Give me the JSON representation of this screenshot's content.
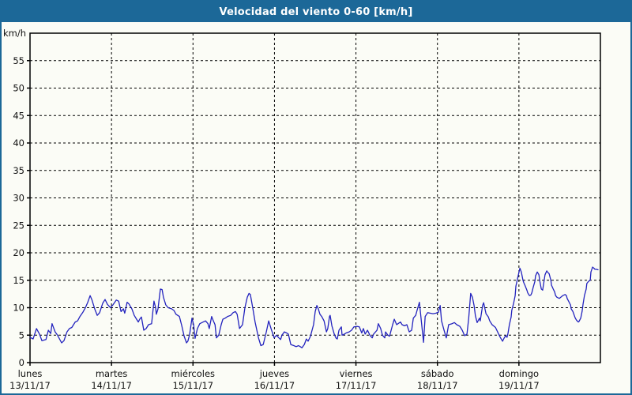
{
  "window": {
    "title": "Velocidad del viento 0-60 [km/h]"
  },
  "colors": {
    "titlebar_bg": "#1c6898",
    "titlebar_text": "#ffffff",
    "window_bg": "#fbfcf6",
    "window_border": "#1c6898",
    "plot_frame": "#000000",
    "gridline": "#000000",
    "tick_label": "#111111",
    "series_line": "#2323be"
  },
  "chart_data": {
    "type": "line",
    "title": "Velocidad del viento 0-60 [km/h]",
    "ylabel": "km/h",
    "ylim": [
      0,
      60
    ],
    "y_ticks": [
      0,
      5,
      10,
      15,
      20,
      25,
      30,
      35,
      40,
      45,
      50,
      55
    ],
    "grid": "dashed",
    "legend": "none",
    "x_unit": "hours since lunes 13/11/17 00:00",
    "xlim": [
      0,
      168
    ],
    "x_days": [
      {
        "name": "lunes",
        "date": "13/11/17"
      },
      {
        "name": "martes",
        "date": "14/11/17"
      },
      {
        "name": "miércoles",
        "date": "15/11/17"
      },
      {
        "name": "jueves",
        "date": "16/11/17"
      },
      {
        "name": "viernes",
        "date": "17/11/17"
      },
      {
        "name": "sábado",
        "date": "18/11/17"
      },
      {
        "name": "domingo",
        "date": "19/11/17"
      }
    ],
    "series": [
      {
        "name": "Velocidad del viento",
        "color": "#2323be",
        "points": [
          [
            0,
            4.6
          ],
          [
            0.9,
            4.3
          ],
          [
            1.9,
            6.2
          ],
          [
            2.8,
            5.2
          ],
          [
            3.5,
            4.0
          ],
          [
            4.7,
            4.2
          ],
          [
            5.4,
            5.9
          ],
          [
            6.1,
            5.3
          ],
          [
            6.5,
            7.1
          ],
          [
            7.4,
            5.6
          ],
          [
            8.1,
            5.0
          ],
          [
            9.3,
            3.6
          ],
          [
            10,
            4.0
          ],
          [
            10.9,
            5.6
          ],
          [
            11.6,
            6.2
          ],
          [
            12.3,
            6.4
          ],
          [
            13.3,
            7.4
          ],
          [
            14,
            7.6
          ],
          [
            14.7,
            8.4
          ],
          [
            15.6,
            9.2
          ],
          [
            16.3,
            10
          ],
          [
            17,
            11
          ],
          [
            17.7,
            12.2
          ],
          [
            18.2,
            11.5
          ],
          [
            19.1,
            9.7
          ],
          [
            19.8,
            8.6
          ],
          [
            20.5,
            9.1
          ],
          [
            21.4,
            10.8
          ],
          [
            22.1,
            11.5
          ],
          [
            22.8,
            10.6
          ],
          [
            23.7,
            10
          ],
          [
            24.4,
            10.5
          ],
          [
            25.4,
            11.4
          ],
          [
            26.1,
            11.2
          ],
          [
            26.8,
            9.3
          ],
          [
            27.5,
            9.8
          ],
          [
            27.9,
            9.0
          ],
          [
            28.6,
            11.0
          ],
          [
            29.1,
            10.7
          ],
          [
            30,
            9.8
          ],
          [
            30.7,
            8.6
          ],
          [
            31.4,
            7.9
          ],
          [
            31.9,
            7.4
          ],
          [
            32.3,
            7.9
          ],
          [
            32.8,
            8.3
          ],
          [
            33.5,
            5.9
          ],
          [
            34.2,
            6.2
          ],
          [
            34.9,
            6.9
          ],
          [
            35.8,
            7.1
          ],
          [
            36.5,
            11.2
          ],
          [
            37,
            10
          ],
          [
            37.2,
            8.8
          ],
          [
            37.7,
            9.8
          ],
          [
            38.4,
            13.4
          ],
          [
            38.9,
            13.3
          ],
          [
            39.3,
            11.9
          ],
          [
            40,
            10.5
          ],
          [
            40.7,
            10
          ],
          [
            41.7,
            9.8
          ],
          [
            42.4,
            9.5
          ],
          [
            43,
            8.8
          ],
          [
            44,
            8.4
          ],
          [
            44.7,
            6.7
          ],
          [
            45.4,
            4.8
          ],
          [
            46.1,
            3.6
          ],
          [
            46.5,
            3.9
          ],
          [
            47,
            5.1
          ],
          [
            47.7,
            8.1
          ],
          [
            48.2,
            6.9
          ],
          [
            48.6,
            4.4
          ],
          [
            49.3,
            6.2
          ],
          [
            50,
            7.1
          ],
          [
            51,
            7.4
          ],
          [
            51.7,
            7.6
          ],
          [
            52.4,
            7.1
          ],
          [
            52.8,
            6.2
          ],
          [
            53.5,
            8.4
          ],
          [
            54,
            7.6
          ],
          [
            54.5,
            6.9
          ],
          [
            54.9,
            4.5
          ],
          [
            55.6,
            5.0
          ],
          [
            56.3,
            6.9
          ],
          [
            56.8,
            7.9
          ],
          [
            57.5,
            8.1
          ],
          [
            58.2,
            8.4
          ],
          [
            59.1,
            8.6
          ],
          [
            59.8,
            9.1
          ],
          [
            60.5,
            9.3
          ],
          [
            61,
            8.8
          ],
          [
            61.7,
            6.2
          ],
          [
            62.6,
            6.9
          ],
          [
            63.3,
            10
          ],
          [
            64,
            11.9
          ],
          [
            64.5,
            12.6
          ],
          [
            64.9,
            12.4
          ],
          [
            65.6,
            10
          ],
          [
            66.3,
            7.4
          ],
          [
            67.3,
            4.5
          ],
          [
            68,
            3.1
          ],
          [
            68.7,
            3.3
          ],
          [
            69.6,
            5.6
          ],
          [
            70.3,
            7.6
          ],
          [
            71,
            6.2
          ],
          [
            71.9,
            4.5
          ],
          [
            72.6,
            5.0
          ],
          [
            73.3,
            4.5
          ],
          [
            73.8,
            4.2
          ],
          [
            74.2,
            5.0
          ],
          [
            74.9,
            5.6
          ],
          [
            75.6,
            5.4
          ],
          [
            76.1,
            5.2
          ],
          [
            76.8,
            3.3
          ],
          [
            77.7,
            3.1
          ],
          [
            78.4,
            2.9
          ],
          [
            79.1,
            3.1
          ],
          [
            80.1,
            2.7
          ],
          [
            80.8,
            3.3
          ],
          [
            81.4,
            4.3
          ],
          [
            81.9,
            3.9
          ],
          [
            82.6,
            4.8
          ],
          [
            83.5,
            6.9
          ],
          [
            84,
            9.3
          ],
          [
            84.5,
            10.4
          ],
          [
            84.9,
            9.8
          ],
          [
            85.4,
            8.8
          ],
          [
            85.9,
            8.4
          ],
          [
            86.6,
            7.6
          ],
          [
            87.3,
            5.6
          ],
          [
            87.7,
            6.2
          ],
          [
            88.2,
            8.4
          ],
          [
            88.4,
            8.6
          ],
          [
            88.9,
            6.7
          ],
          [
            89.6,
            5.2
          ],
          [
            90.1,
            4.5
          ],
          [
            90.5,
            4.3
          ],
          [
            91,
            5.9
          ],
          [
            91.7,
            6.5
          ],
          [
            91.9,
            5.0
          ],
          [
            92.6,
            5.2
          ],
          [
            93.1,
            5.4
          ],
          [
            94,
            5.6
          ],
          [
            94.7,
            5.9
          ],
          [
            95.4,
            6.5
          ],
          [
            96.3,
            6.6
          ],
          [
            97,
            6.5
          ],
          [
            97.7,
            5.4
          ],
          [
            98.2,
            6.2
          ],
          [
            98.7,
            5.2
          ],
          [
            99.4,
            5.9
          ],
          [
            100.1,
            5.0
          ],
          [
            100.8,
            4.5
          ],
          [
            101.2,
            5.2
          ],
          [
            102.2,
            5.9
          ],
          [
            102.6,
            7.1
          ],
          [
            103.3,
            6.2
          ],
          [
            103.8,
            5.0
          ],
          [
            104.5,
            4.5
          ],
          [
            104.7,
            5.6
          ],
          [
            105.4,
            5.0
          ],
          [
            105.9,
            4.8
          ],
          [
            106.8,
            6.9
          ],
          [
            107.3,
            7.9
          ],
          [
            108,
            6.9
          ],
          [
            108.4,
            7.1
          ],
          [
            109.1,
            7.4
          ],
          [
            109.6,
            6.9
          ],
          [
            110.3,
            6.7
          ],
          [
            111,
            6.9
          ],
          [
            111.7,
            5.6
          ],
          [
            112.4,
            5.9
          ],
          [
            112.9,
            8.1
          ],
          [
            113.6,
            8.6
          ],
          [
            114,
            9.5
          ],
          [
            114.7,
            11.0
          ],
          [
            115.9,
            3.7
          ],
          [
            116.4,
            8.4
          ],
          [
            117.1,
            9.1
          ],
          [
            117.8,
            9.0
          ],
          [
            118.7,
            8.9
          ],
          [
            119.6,
            9.0
          ],
          [
            120.3,
            9.2
          ],
          [
            120.8,
            10.4
          ],
          [
            121.2,
            7.6
          ],
          [
            121.9,
            6.0
          ],
          [
            122.6,
            4.5
          ],
          [
            123.3,
            6.9
          ],
          [
            124.3,
            7.1
          ],
          [
            125,
            7.3
          ],
          [
            125.7,
            6.9
          ],
          [
            126.6,
            6.6
          ],
          [
            127.3,
            5.9
          ],
          [
            128,
            4.9
          ],
          [
            128.7,
            5.2
          ],
          [
            129.2,
            8.1
          ],
          [
            129.8,
            12.6
          ],
          [
            130.3,
            11.9
          ],
          [
            130.8,
            10.4
          ],
          [
            131.2,
            8.5
          ],
          [
            131.7,
            7.3
          ],
          [
            132.4,
            8.1
          ],
          [
            132.6,
            7.6
          ],
          [
            133.3,
            10.4
          ],
          [
            133.6,
            10.9
          ],
          [
            134.3,
            8.9
          ],
          [
            135,
            8.3
          ],
          [
            135.4,
            7.6
          ],
          [
            136.1,
            6.9
          ],
          [
            137.1,
            6.4
          ],
          [
            137.8,
            5.5
          ],
          [
            138.5,
            4.6
          ],
          [
            139.2,
            3.9
          ],
          [
            139.6,
            4.4
          ],
          [
            140.1,
            4.9
          ],
          [
            140.5,
            4.6
          ],
          [
            140.8,
            5.4
          ],
          [
            141.2,
            6.9
          ],
          [
            141.7,
            8.3
          ],
          [
            141.9,
            9.5
          ],
          [
            142.4,
            10.7
          ],
          [
            142.9,
            12.2
          ],
          [
            143.1,
            13.9
          ],
          [
            143.6,
            15.3
          ],
          [
            144.3,
            17.2
          ],
          [
            144.7,
            16.5
          ],
          [
            145.2,
            15.0
          ],
          [
            145.4,
            14.6
          ],
          [
            145.9,
            13.9
          ],
          [
            146.4,
            13.1
          ],
          [
            146.6,
            12.7
          ],
          [
            147.1,
            12.2
          ],
          [
            147.5,
            12.3
          ],
          [
            147.8,
            12.7
          ],
          [
            148.2,
            13.7
          ],
          [
            148.7,
            14.8
          ],
          [
            148.9,
            15.8
          ],
          [
            149.4,
            16.5
          ],
          [
            149.9,
            16.0
          ],
          [
            150.1,
            15.0
          ],
          [
            150.6,
            13.4
          ],
          [
            151,
            13.2
          ],
          [
            151.3,
            14.4
          ],
          [
            151.7,
            16.0
          ],
          [
            152.2,
            16.7
          ],
          [
            152.4,
            16.5
          ],
          [
            152.9,
            16.2
          ],
          [
            153.4,
            15.0
          ],
          [
            153.6,
            14.1
          ],
          [
            154.1,
            13.4
          ],
          [
            154.5,
            12.9
          ],
          [
            154.8,
            12.2
          ],
          [
            155.2,
            11.9
          ],
          [
            155.9,
            11.7
          ],
          [
            156.9,
            12.2
          ],
          [
            157.6,
            12.4
          ],
          [
            158,
            12.2
          ],
          [
            158.2,
            11.7
          ],
          [
            159.2,
            10.5
          ],
          [
            159.4,
            9.8
          ],
          [
            159.9,
            9.3
          ],
          [
            160.3,
            8.6
          ],
          [
            160.6,
            8.1
          ],
          [
            161,
            7.7
          ],
          [
            161.5,
            7.4
          ],
          [
            161.7,
            7.5
          ],
          [
            162.2,
            8.1
          ],
          [
            162.6,
            9.3
          ],
          [
            162.9,
            10.7
          ],
          [
            163.3,
            12.2
          ],
          [
            163.8,
            13.4
          ],
          [
            164,
            14.4
          ],
          [
            164.5,
            14.8
          ],
          [
            165,
            15.0
          ],
          [
            165.2,
            16.5
          ],
          [
            165.7,
            17.4
          ],
          [
            166.1,
            17.2
          ],
          [
            166.4,
            17.0
          ],
          [
            166.8,
            17.0
          ],
          [
            167.3,
            16.9
          ]
        ]
      }
    ]
  }
}
